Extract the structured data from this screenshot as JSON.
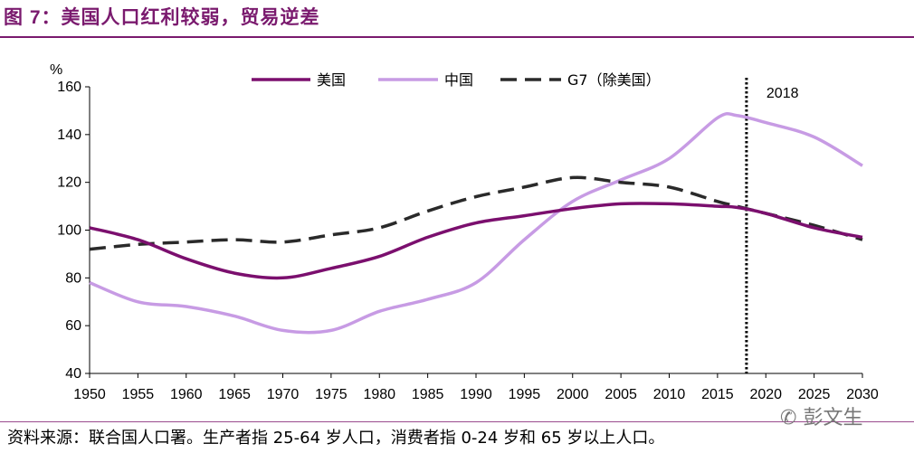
{
  "header": {
    "fig_label": "图 7：",
    "title": "美国人口红利较弱，贸易逆差"
  },
  "footer": {
    "source": "资料来源：联合国人口署。生产者指 25-64 岁人口，消费者指 0-24 岁和 65 岁以上人口。",
    "watermark": "彭文生"
  },
  "chart_data": {
    "type": "line",
    "title": "",
    "xlabel": "",
    "ylabel": "%",
    "xlim": [
      1950,
      2030
    ],
    "ylim": [
      40,
      160
    ],
    "x_ticks": [
      1950,
      1955,
      1960,
      1965,
      1970,
      1975,
      1980,
      1985,
      1990,
      1995,
      2000,
      2005,
      2010,
      2015,
      2020,
      2025,
      2030
    ],
    "y_ticks": [
      40,
      60,
      80,
      100,
      120,
      140,
      160
    ],
    "grid": false,
    "legend_position": "top-center",
    "vline": {
      "x": 2018,
      "label": "2018",
      "style": "dotted"
    },
    "x": [
      1950,
      1955,
      1960,
      1965,
      1970,
      1975,
      1980,
      1985,
      1990,
      1995,
      2000,
      2005,
      2010,
      2015,
      2017,
      2020,
      2025,
      2030
    ],
    "series": [
      {
        "name": "美国",
        "color": "#7b0f6e",
        "style": "solid",
        "values": [
          101,
          96,
          88,
          82,
          80,
          84,
          89,
          97,
          103,
          106,
          109,
          111,
          111,
          110,
          109.5,
          107,
          101,
          97
        ]
      },
      {
        "name": "中国",
        "color": "#c79be4",
        "style": "solid",
        "values": [
          78,
          70,
          68,
          64,
          58,
          58,
          66,
          71,
          78,
          96,
          112,
          121,
          130,
          147,
          148,
          145,
          139,
          127
        ]
      },
      {
        "name": "G7（除美国）",
        "color": "#2a2a2a",
        "style": "dashed",
        "values": [
          92,
          94,
          95,
          96,
          95,
          98,
          101,
          108,
          114,
          118,
          122,
          120,
          118,
          112,
          110,
          107,
          102,
          96
        ]
      }
    ]
  }
}
